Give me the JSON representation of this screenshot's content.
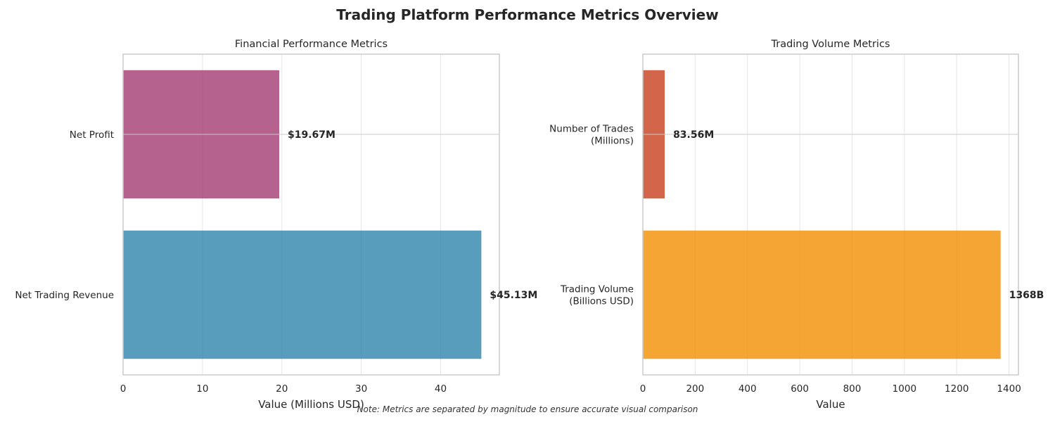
{
  "figure_title": "Trading Platform Performance Metrics Overview",
  "note": "Note: Metrics are separated by magnitude to ensure accurate visual comparison",
  "chart_data": [
    {
      "type": "bar",
      "orientation": "horizontal",
      "title": "Financial Performance Metrics",
      "xlabel": "Value (Millions USD)",
      "ylabel": "",
      "xlim": [
        0,
        47.4
      ],
      "xticks": [
        0,
        10,
        20,
        30,
        40
      ],
      "grid": true,
      "categories": [
        "Net Profit",
        "Net Trading Revenue"
      ],
      "values": [
        19.67,
        45.13
      ],
      "data_labels": [
        "$19.67M",
        "$45.13M"
      ],
      "colors": [
        "#a23b72",
        "#2e86ab"
      ]
    },
    {
      "type": "bar",
      "orientation": "horizontal",
      "title": "Trading Volume Metrics",
      "xlabel": "Value",
      "ylabel": "",
      "xlim": [
        0,
        1436
      ],
      "xticks": [
        0,
        200,
        400,
        600,
        800,
        1000,
        1200,
        1400
      ],
      "grid": true,
      "categories": [
        [
          "Number of Trades",
          "(Millions)"
        ],
        [
          "Trading Volume",
          "(Billions USD)"
        ]
      ],
      "values": [
        83.56,
        1368
      ],
      "data_labels": [
        "83.56M",
        "1368B"
      ],
      "colors": [
        "#c73e1d",
        "#f18f01"
      ]
    }
  ]
}
